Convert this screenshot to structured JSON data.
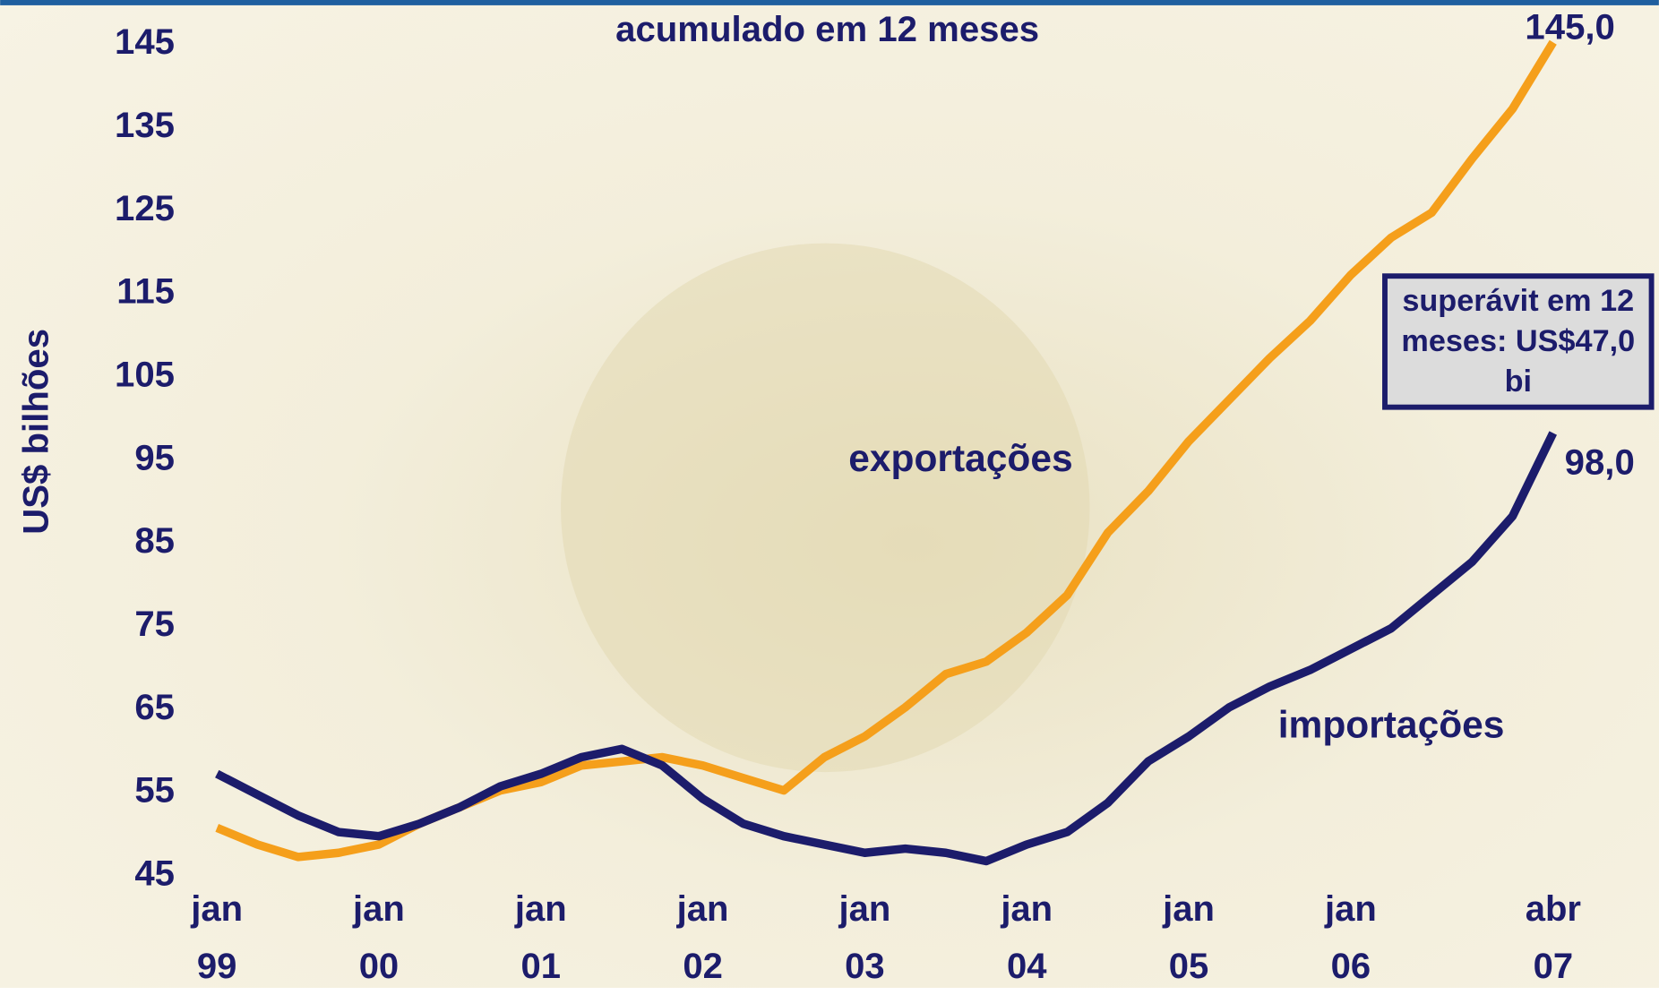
{
  "chart_data": {
    "type": "line",
    "title": "acumulado em 12 meses",
    "y_label": "US$ bilhões",
    "categories": [
      "jan 99",
      null,
      null,
      null,
      "jan 00",
      null,
      null,
      null,
      "jan 01",
      null,
      null,
      null,
      "jan 02",
      null,
      null,
      null,
      "jan 03",
      null,
      null,
      null,
      "jan 04",
      null,
      null,
      null,
      "jan 05",
      null,
      null,
      null,
      "jan 06",
      null,
      null,
      null,
      null,
      "abr 07"
    ],
    "series": [
      {
        "name": "exportações",
        "color": "#f59f1b",
        "values": [
          50.5,
          48.5,
          47,
          47.5,
          48.5,
          51,
          53,
          55,
          56,
          58,
          58.5,
          59,
          58,
          56.5,
          55,
          59,
          61.5,
          65,
          69,
          70.5,
          74,
          78.5,
          86,
          91,
          97,
          102,
          107,
          111.5,
          117,
          121.5,
          124.5,
          131,
          137,
          145
        ],
        "value_labels": [
          null,
          null,
          null,
          null,
          null,
          null,
          null,
          null,
          null,
          null,
          null,
          null,
          null,
          null,
          null,
          null,
          null,
          null,
          null,
          null,
          null,
          null,
          null,
          null,
          null,
          null,
          null,
          null,
          null,
          null,
          null,
          null,
          null,
          "145,0"
        ]
      },
      {
        "name": "importações",
        "color": "#1c1c6b",
        "values": [
          57,
          54.5,
          52,
          50,
          49.5,
          51,
          53,
          55.5,
          57,
          59,
          60,
          58,
          54,
          51,
          49.5,
          48.5,
          47.5,
          48,
          47.5,
          46.5,
          48.5,
          50,
          53.5,
          58.5,
          61.5,
          65,
          67.5,
          69.5,
          72,
          74.5,
          78.5,
          82.5,
          88,
          98
        ],
        "value_labels": [
          null,
          null,
          null,
          null,
          null,
          null,
          null,
          null,
          null,
          null,
          null,
          null,
          null,
          null,
          null,
          null,
          null,
          null,
          null,
          null,
          null,
          null,
          null,
          null,
          null,
          null,
          null,
          null,
          null,
          null,
          null,
          null,
          null,
          "98,0"
        ]
      }
    ],
    "ylim": [
      45,
      145
    ],
    "yticks": [
      45,
      55,
      65,
      75,
      85,
      95,
      105,
      115,
      125,
      135,
      145
    ],
    "annotation": "superávit em 12 meses: US$47,0 bi"
  }
}
